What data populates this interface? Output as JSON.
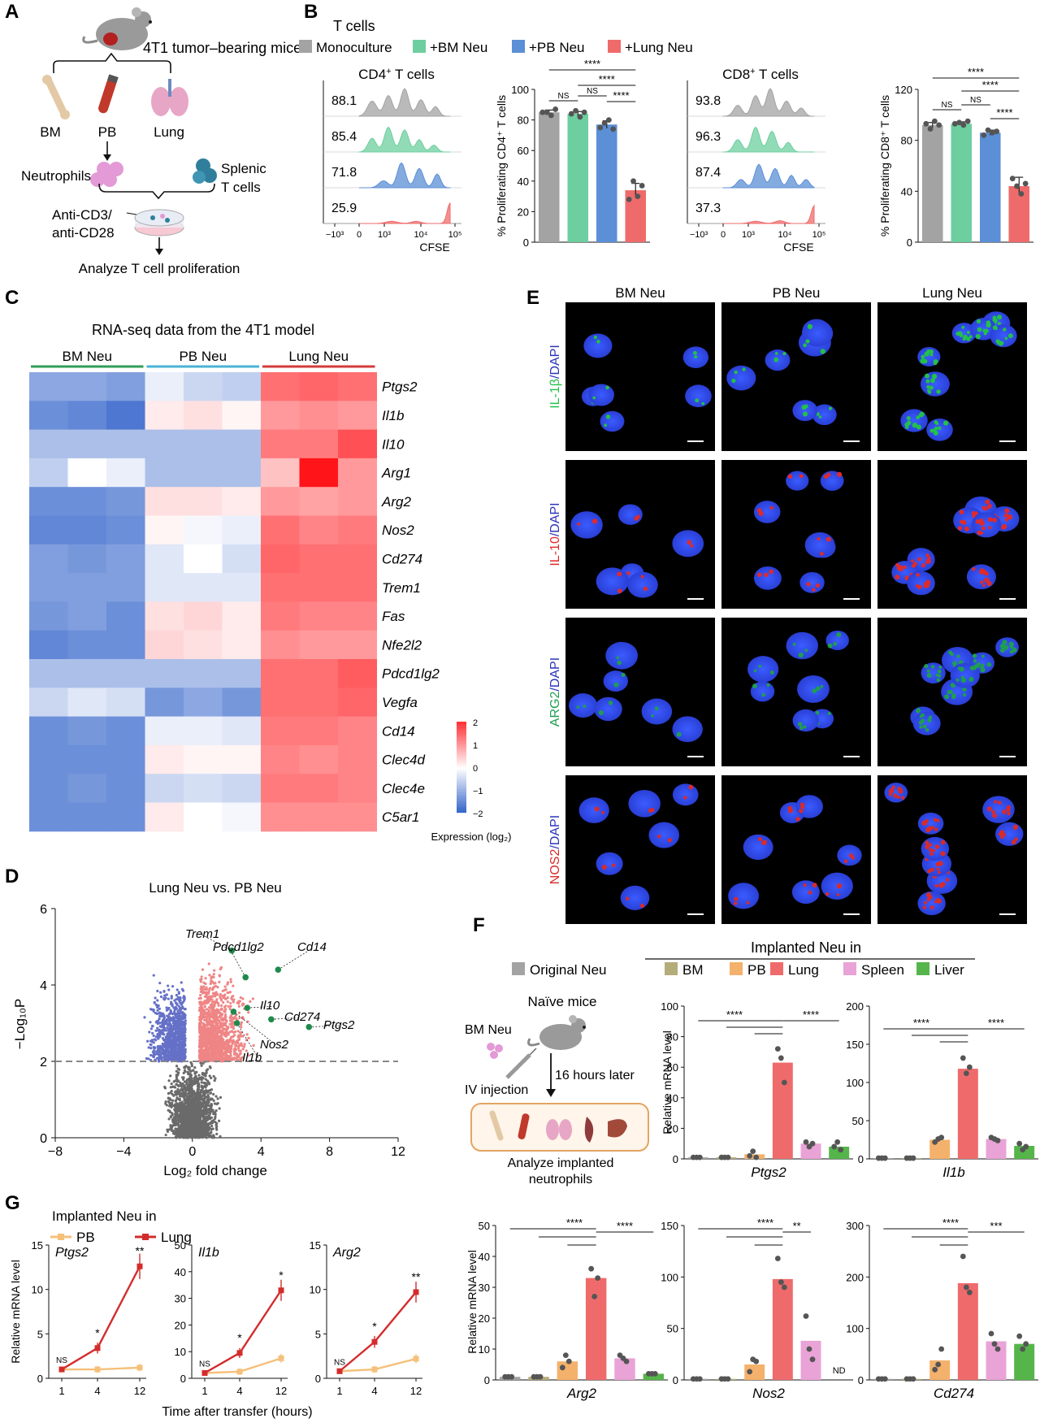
{
  "colors": {
    "gray": "#a3a3a3",
    "green": "#6dcf9f",
    "blue": "#5b8fd6",
    "red": "#ef6b6b",
    "olive": "#b5ad79",
    "orange": "#f4b16b",
    "pink": "#e9a3d6",
    "liver": "#55b54a",
    "pb_line": "#f5c07a",
    "lung_line": "#d42c2c"
  },
  "panels": {
    "A": "A",
    "B": "B",
    "C": "C",
    "D": "D",
    "E": "E",
    "F": "F",
    "G": "G"
  },
  "panelA": {
    "mouse_label": "4T1 tumor–bearing mice",
    "organs": [
      "BM",
      "PB",
      "Lung"
    ],
    "neutrophils": "Neutrophils",
    "splenic_1": "Splenic",
    "splenic_2": "T cells",
    "anti1": "Anti-CD3/",
    "anti2": "anti-CD28",
    "analyze": "Analyze T cell proliferation"
  },
  "panelB": {
    "tcells": "T cells",
    "legend": [
      "Monoculture",
      "+BM Neu",
      "+PB Neu",
      "+Lung Neu"
    ],
    "cd4_title": "CD4",
    "cd8_title": "CD8",
    "title_suffix": " T cells",
    "sup": "+",
    "cd4_values": [
      "88.1",
      "85.4",
      "71.8",
      "25.9"
    ],
    "cd8_values": [
      "93.8",
      "96.3",
      "87.4",
      "37.3"
    ],
    "flow_xticks": [
      "−10³",
      "0",
      "10³",
      "10⁴",
      "10⁵"
    ],
    "flow_xlabel": "CFSE",
    "cd4_ylabel": "% Proliferating CD4⁺ T cells",
    "cd8_ylabel": "% Proliferating CD8⁺ T cells",
    "ns": "NS",
    "stars4": "****"
  },
  "panelC": {
    "title": "RNA-seq data from the 4T1 model",
    "groups": [
      "BM Neu",
      "PB Neu",
      "Lung Neu"
    ],
    "genes": [
      "Ptgs2",
      "Il1b",
      "Il10",
      "Arg1",
      "Arg2",
      "Nos2",
      "Cd274",
      "Trem1",
      "Fas",
      "Nfe2l2",
      "Pdcd1lg2",
      "Vegfa",
      "Cd14",
      "Clec4d",
      "Clec4e",
      "C5ar1"
    ],
    "scale_ticks": [
      "2",
      "1",
      "0",
      "−1",
      "−2"
    ],
    "scale_label": "Expression (log₂)"
  },
  "panelD": {
    "title": "Lung Neu vs. PB Neu",
    "xlabel": "Log₂ fold change",
    "ylabel": "−Log₁₀P",
    "xticks": [
      "−8",
      "−4",
      "0",
      "4",
      "8",
      "12"
    ],
    "yticks": [
      "0",
      "2",
      "4",
      "6"
    ],
    "labels": [
      "Trem1",
      "Pdcd1lg2",
      "Cd14",
      "Il10",
      "Cd274",
      "Ptgs2",
      "Nos2",
      "Il1b"
    ]
  },
  "panelE": {
    "columns": [
      "BM Neu",
      "PB Neu",
      "Lung Neu"
    ],
    "rows": [
      {
        "marker": "IL-1β",
        "stain": "/DAPI"
      },
      {
        "marker": "IL-10",
        "stain": "/DAPI"
      },
      {
        "marker": "ARG2",
        "stain": "/DAPI"
      },
      {
        "marker": "NOS2",
        "stain": "/DAPI"
      }
    ]
  },
  "panelF": {
    "implanted": "Implanted Neu in",
    "legend": [
      "Original Neu",
      "BM",
      "PB",
      "Lung",
      "Spleen",
      "Liver"
    ],
    "naive": "Naïve mice",
    "bmneu": "BM Neu",
    "iv": "IV injection",
    "hours": "16 hours later",
    "analyze1": "Analyze implanted",
    "analyze2": "neutrophils",
    "ylabel": "Relative mRNA level",
    "nd": "ND",
    "genes": [
      "Ptgs2",
      "Il1b",
      "Arg2",
      "Nos2",
      "Cd274"
    ]
  },
  "panelG": {
    "implanted": "Implanted Neu in",
    "legend": [
      "PB",
      "Lung"
    ],
    "ylabel": "Relative mRNA level",
    "xlabel": "Time after transfer (hours)",
    "xticks": [
      "1",
      "4",
      "12"
    ],
    "genes": [
      "Ptgs2",
      "Il1b",
      "Arg2"
    ]
  },
  "chart_data": [
    {
      "type": "bar",
      "ylabel": "% Proliferating CD4⁺ T cells",
      "categories": [
        "Monoculture",
        "+BM Neu",
        "+PB Neu",
        "+Lung Neu"
      ],
      "values": [
        85,
        84,
        77,
        34
      ],
      "ylim": [
        0,
        100
      ]
    },
    {
      "type": "bar",
      "ylabel": "% Proliferating CD8⁺ T cells",
      "categories": [
        "Monoculture",
        "+BM Neu",
        "+PB Neu",
        "+Lung Neu"
      ],
      "values": [
        92,
        93,
        86,
        44
      ],
      "ylim": [
        0,
        120
      ]
    },
    {
      "type": "scatter",
      "title": "Lung Neu vs. PB Neu",
      "xlabel": "Log₂ fold change",
      "ylabel": "−Log₁₀P",
      "xlim": [
        -8,
        12
      ],
      "ylim": [
        0,
        6
      ],
      "labeled_points": [
        {
          "name": "Trem1",
          "x": 2.3,
          "y": 4.9
        },
        {
          "name": "Pdcd1lg2",
          "x": 3.1,
          "y": 4.2
        },
        {
          "name": "Cd14",
          "x": 5.0,
          "y": 4.4
        },
        {
          "name": "Il10",
          "x": 3.2,
          "y": 3.4
        },
        {
          "name": "Cd274",
          "x": 4.6,
          "y": 3.1
        },
        {
          "name": "Ptgs2",
          "x": 6.8,
          "y": 2.9
        },
        {
          "name": "Nos2",
          "x": 2.4,
          "y": 3.3
        },
        {
          "name": "Il1b",
          "x": 2.6,
          "y": 3.0
        }
      ]
    },
    {
      "type": "bar",
      "title": "Ptgs2",
      "ylabel": "Relative mRNA level",
      "categories": [
        "Original Neu",
        "BM",
        "PB",
        "Lung",
        "Spleen",
        "Liver"
      ],
      "values": [
        1,
        1,
        3,
        63,
        10,
        8
      ],
      "ylim": [
        0,
        100
      ]
    },
    {
      "type": "bar",
      "title": "Il1b",
      "ylabel": "Relative mRNA level",
      "categories": [
        "Original Neu",
        "BM",
        "PB",
        "Lung",
        "Spleen",
        "Liver"
      ],
      "values": [
        1,
        1,
        25,
        118,
        26,
        17
      ],
      "ylim": [
        0,
        200
      ]
    },
    {
      "type": "bar",
      "title": "Arg2",
      "ylabel": "Relative mRNA level",
      "categories": [
        "Original Neu",
        "BM",
        "PB",
        "Lung",
        "Spleen",
        "Liver"
      ],
      "values": [
        1,
        1,
        6,
        33,
        7,
        2
      ],
      "ylim": [
        0,
        50
      ]
    },
    {
      "type": "bar",
      "title": "Nos2",
      "ylabel": "Relative mRNA level",
      "categories": [
        "Original Neu",
        "BM",
        "PB",
        "Lung",
        "Spleen",
        "Liver"
      ],
      "values": [
        1,
        1,
        15,
        98,
        38,
        0
      ],
      "ylim": [
        0,
        150
      ]
    },
    {
      "type": "bar",
      "title": "Cd274",
      "ylabel": "Relative mRNA level",
      "categories": [
        "Original Neu",
        "BM",
        "PB",
        "Lung",
        "Spleen",
        "Liver"
      ],
      "values": [
        2,
        2,
        38,
        188,
        75,
        70
      ],
      "ylim": [
        0,
        300
      ]
    },
    {
      "type": "line",
      "title": "Ptgs2",
      "x": [
        1,
        4,
        12
      ],
      "series": [
        {
          "name": "PB",
          "values": [
            1,
            1,
            1.2
          ]
        },
        {
          "name": "Lung",
          "values": [
            1,
            3.4,
            12.6
          ]
        }
      ],
      "ylim": [
        0,
        15
      ]
    },
    {
      "type": "line",
      "title": "Il1b",
      "x": [
        1,
        4,
        12
      ],
      "series": [
        {
          "name": "PB",
          "values": [
            2,
            2.5,
            7.5
          ]
        },
        {
          "name": "Lung",
          "values": [
            2,
            9.5,
            33
          ]
        }
      ],
      "ylim": [
        0,
        50
      ]
    },
    {
      "type": "line",
      "title": "Arg2",
      "x": [
        1,
        4,
        12
      ],
      "series": [
        {
          "name": "PB",
          "values": [
            0.8,
            1,
            2.2
          ]
        },
        {
          "name": "Lung",
          "values": [
            0.8,
            4.1,
            9.7
          ]
        }
      ],
      "ylim": [
        0,
        15
      ]
    }
  ]
}
